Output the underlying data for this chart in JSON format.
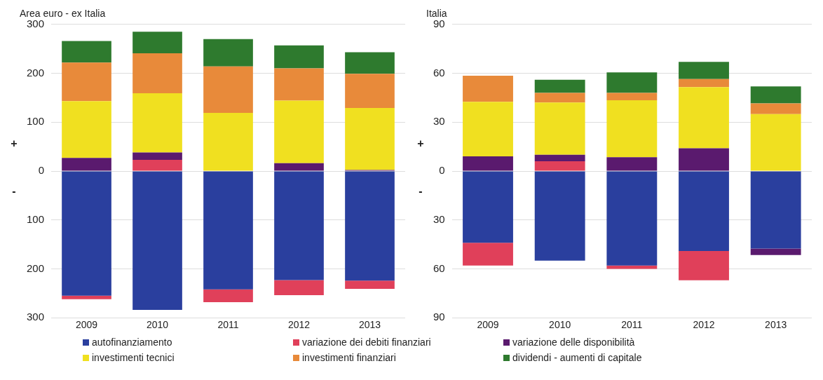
{
  "chart_data": [
    {
      "type": "bar",
      "title": "Area euro - ex Italia",
      "stacked": true,
      "categories": [
        "2009",
        "2010",
        "2011",
        "2012",
        "2013"
      ],
      "series": [
        {
          "name": "autofinanziamento",
          "color": "#2a3f9e",
          "values": [
            -255,
            -284,
            -242,
            -223,
            -224
          ]
        },
        {
          "name": "variazione dei debiti finanziari",
          "color": "#e0405a",
          "values": [
            -7,
            23,
            -26,
            -31,
            -17
          ]
        },
        {
          "name": "variazione delle disponibilità",
          "color": "#5a1a6e",
          "values": [
            27,
            15,
            null,
            16,
            2
          ]
        },
        {
          "name": "investimenti tecnici",
          "color": "#f0e020",
          "values": [
            116,
            121,
            119,
            128,
            127
          ]
        },
        {
          "name": "investimenti finanziari",
          "color": "#e88a3a",
          "values": [
            79,
            82,
            95,
            66,
            70
          ]
        },
        {
          "name": "dividendi - aumenti di capitale",
          "color": "#2e7a2e",
          "values": [
            44,
            44,
            56,
            47,
            44
          ]
        }
      ],
      "ylim": [
        -300,
        300
      ],
      "yticks": [
        {
          "value": -300,
          "label": "300"
        },
        {
          "value": -200,
          "label": "200"
        },
        {
          "value": -100,
          "label": "100"
        },
        0,
        100,
        200,
        300
      ],
      "annotations": [
        "+",
        "-"
      ],
      "grid": "y",
      "legend": "bottom"
    },
    {
      "type": "bar",
      "title": "Italia",
      "stacked": true,
      "categories": [
        "2009",
        "2010",
        "2011",
        "2012",
        "2013"
      ],
      "series": [
        {
          "color": "#2a3f9e",
          "values": [
            -44,
            -55,
            -58,
            -49,
            -47.5
          ]
        },
        {
          "color": "#e0405a",
          "values": [
            -14,
            6,
            -2,
            -18,
            null
          ]
        },
        {
          "color": "#5a1a6e",
          "values": [
            9,
            4,
            8.5,
            14,
            -4
          ]
        },
        {
          "color": "#f0e020",
          "values": [
            33.5,
            32,
            35,
            37.5,
            35
          ]
        },
        {
          "color": "#e88a3a",
          "values": [
            16,
            6,
            4.5,
            5,
            6.5
          ]
        },
        {
          "color": "#2e7a2e",
          "values": [
            null,
            8,
            12.5,
            10.5,
            10.5
          ]
        }
      ],
      "ylim": [
        -90,
        90
      ],
      "yticks": [
        {
          "value": -90,
          "label": "90"
        },
        {
          "value": -60,
          "label": "60"
        },
        {
          "value": -30,
          "label": "30"
        },
        0,
        30,
        60,
        90
      ],
      "annotations": [
        "+",
        "-"
      ],
      "grid": "y"
    }
  ]
}
